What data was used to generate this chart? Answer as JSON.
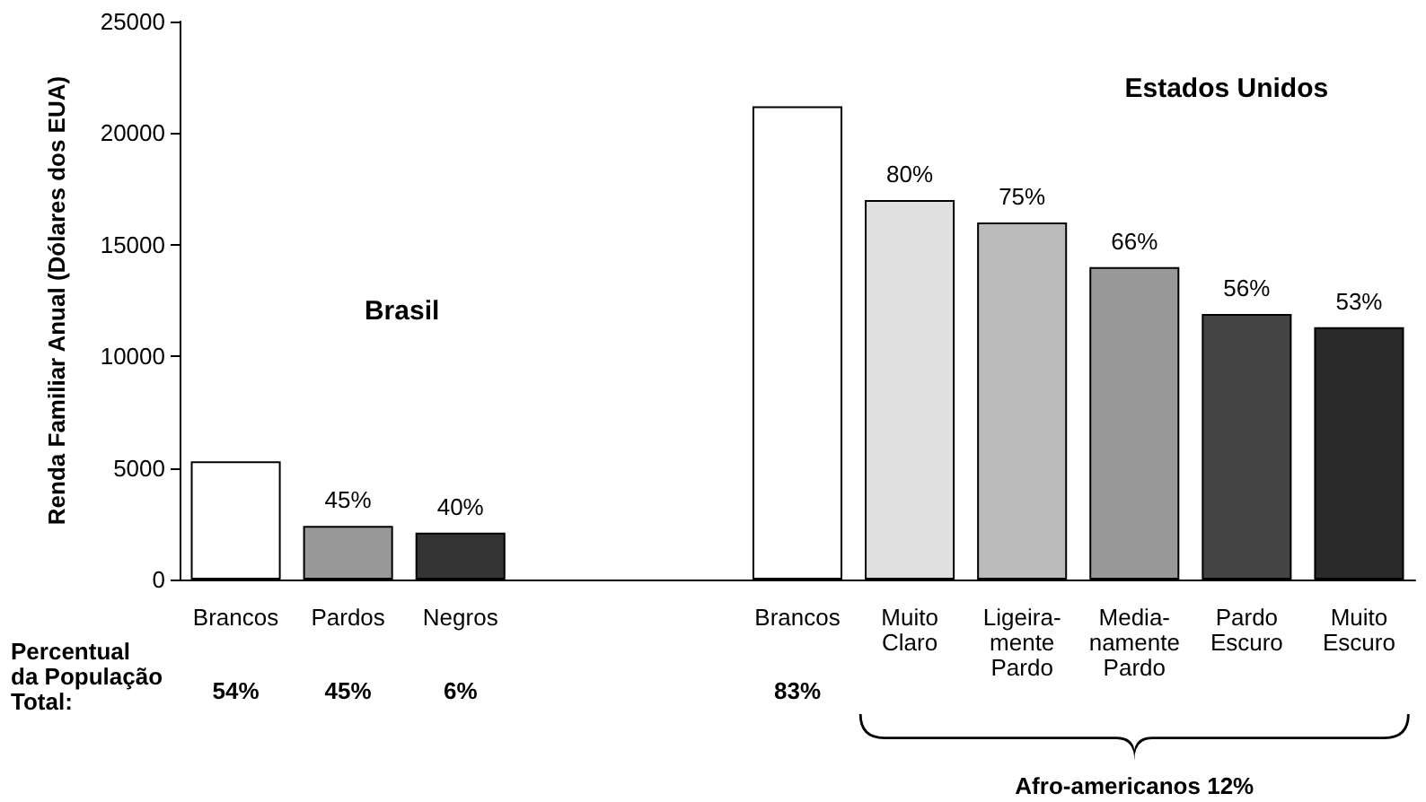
{
  "chart_data": {
    "type": "bar",
    "ylabel": "Renda Familiar Anual (Dólares dos EUA)",
    "categories": [
      "Brancos",
      "Pardos",
      "Negros",
      null,
      null,
      "Brancos",
      "Muito\nClaro",
      "Ligeira-\nmente\nPardo",
      "Media-\nnamente\nPardo",
      "Pardo\nEscuro",
      "Muito\nEscuro"
    ],
    "values": [
      5300,
      2400,
      2100,
      null,
      null,
      21200,
      17000,
      16000,
      14000,
      11900,
      11300
    ],
    "colors": [
      "#ffffff",
      "#999999",
      "#333333",
      "#ffffff",
      "#ffffff",
      "#ffffff",
      "#e0e0e0",
      "#bbbbbb",
      "#999999",
      "#444444",
      "#2a2a2a"
    ],
    "ylim": [
      0,
      25000
    ],
    "yticks": [
      0,
      5000,
      10000,
      15000,
      20000,
      25000
    ],
    "annotations": [
      "Percentual\nda População\nTotal:",
      "54%",
      "45%",
      "6%",
      "83%",
      "Brasil",
      "Estados Unidos",
      "Afro-americanos 12%",
      {
        "text": "45%",
        "x": "Pardos",
        "y": 2400
      },
      {
        "text": "40%",
        "x": "Negros",
        "y": 2100
      },
      {
        "text": "80%",
        "x": "Muito\nClaro",
        "y": 17000
      },
      {
        "text": "75%",
        "x": "Ligeira-\nmente\nPardo",
        "y": 16000
      },
      {
        "text": "66%",
        "x": "Media-\nnamente\nPardo",
        "y": 14000
      },
      {
        "text": "56%",
        "x": "Pardo\nEscuro",
        "y": 11900
      },
      {
        "text": "53%",
        "x": "Muito\nEscuro",
        "y": 11300
      }
    ]
  }
}
